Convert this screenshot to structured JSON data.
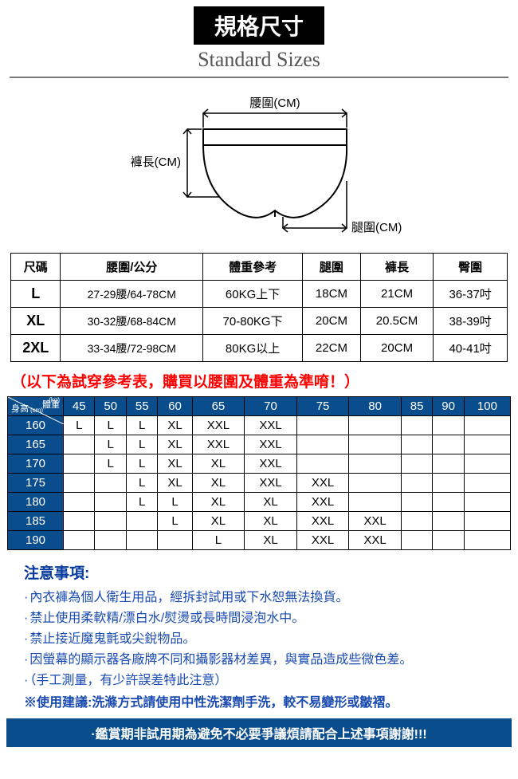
{
  "title": {
    "zh": "規格尺寸",
    "en": "Standard Sizes"
  },
  "diagram_labels": {
    "waist": "腰圍(CM)",
    "length": "褲長(CM)",
    "leg": "腿圍(CM)"
  },
  "spec_table": {
    "headers": [
      "尺碼",
      "腰圍/公分",
      "體重參考",
      "腿圍",
      "褲長",
      "臀圍"
    ],
    "rows": [
      [
        "L",
        "27-29腰/64-78CM",
        "60KG上下",
        "18CM",
        "21CM",
        "36-37吋"
      ],
      [
        "XL",
        "30-32腰/68-84CM",
        "70-80KG下",
        "20CM",
        "20.5CM",
        "38-39吋"
      ],
      [
        "2XL",
        "33-34腰/72-98CM",
        "80KG以上",
        "22CM",
        "20CM",
        "40-41吋"
      ]
    ]
  },
  "fit_note": "（以下為試穿參考表，購買以腰圍及體重為準唷！）",
  "fit_table": {
    "corner": {
      "top": "體重",
      "bottom": "身高",
      "unit_top": "(kg)",
      "unit_bottom": "(cm)"
    },
    "weights": [
      "45",
      "50",
      "55",
      "60",
      "65",
      "70",
      "75",
      "80",
      "85",
      "90",
      "100"
    ],
    "heights": [
      "160",
      "165",
      "170",
      "175",
      "180",
      "185",
      "190"
    ],
    "grid": [
      [
        "L",
        "L",
        "L",
        "XL",
        "XXL",
        "XXL",
        "",
        "",
        "",
        "",
        ""
      ],
      [
        "",
        "L",
        "L",
        "XL",
        "XXL",
        "XXL",
        "",
        "",
        "",
        "",
        ""
      ],
      [
        "",
        "L",
        "L",
        "XL",
        "XL",
        "XXL",
        "",
        "",
        "",
        "",
        ""
      ],
      [
        "",
        "",
        "L",
        "XL",
        "XL",
        "XXL",
        "XXL",
        "",
        "",
        "",
        ""
      ],
      [
        "",
        "",
        "L",
        "L",
        "XL",
        "XL",
        "XXL",
        "",
        "",
        "",
        ""
      ],
      [
        "",
        "",
        "",
        "L",
        "XL",
        "XL",
        "XXL",
        "XXL",
        "",
        "",
        ""
      ],
      [
        "",
        "",
        "",
        "",
        "L",
        "XL",
        "XXL",
        "XXL",
        "",
        "",
        ""
      ]
    ],
    "colors": {
      "header_bg": "#0a4d8c",
      "header_fg": "#ffffff"
    }
  },
  "notes": {
    "title": "注意事項:",
    "items": [
      "內衣褲為個人衛生用品，經拆封試用或下水恕無法換貨。",
      "禁止使用柔軟精/漂白水/熨燙或長時間浸泡水中。",
      "禁止接近魔鬼氈或尖銳物品。",
      "因螢幕的顯示器各廠牌不同和攝影器材差異，與實品造成些微色差。",
      "（手工測量，有少許誤差特此注意）"
    ],
    "advice": "※使用建議:洗滌方式請使用中性洗潔劑手洗，較不易變形或皺褶。"
  },
  "footer": "·鑑賞期非試用期為避免不必要爭議煩請配合上述事項謝謝!!!"
}
